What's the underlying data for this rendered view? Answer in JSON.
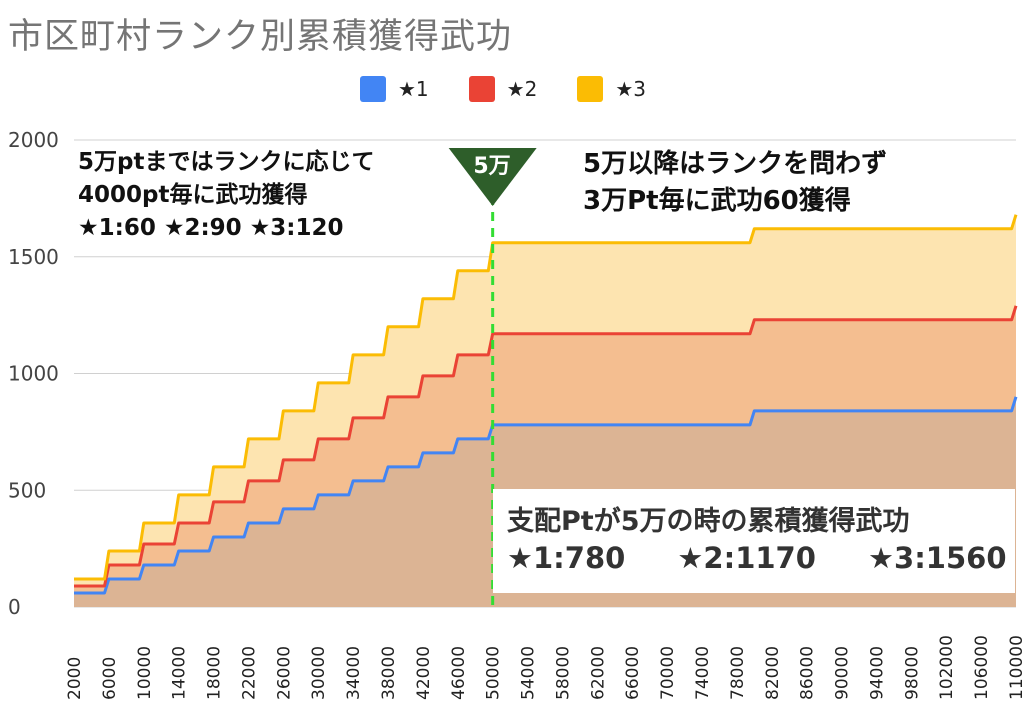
{
  "title": "市区町村ランク別累積獲得武功",
  "legend": [
    {
      "label": "★1",
      "color": "#4285f4"
    },
    {
      "label": "★2",
      "color": "#ea4335"
    },
    {
      "label": "★3",
      "color": "#fbbc04"
    }
  ],
  "annotations": {
    "left_line1": "5万ptまではランクに応じて",
    "left_line2": "4000pt毎に武功獲得",
    "left_line3": "★1:60 ★2:90 ★3:120",
    "right_line1": "5万以降はランクを問わず",
    "right_line2": "3万Pt毎に武功60獲得",
    "marker_label": "5万",
    "box_title": "支配Ptが5万の時の累積獲得武功",
    "box_v1": "★1:780",
    "box_v2": "★2:1170",
    "box_v3": "★3:1560"
  },
  "chart_data": {
    "type": "area",
    "title": "市区町村ランク別累積獲得武功",
    "x": [
      2000,
      4000,
      6000,
      8000,
      10000,
      12000,
      14000,
      16000,
      18000,
      20000,
      22000,
      24000,
      26000,
      28000,
      30000,
      32000,
      34000,
      36000,
      38000,
      40000,
      42000,
      44000,
      46000,
      48000,
      50000,
      52000,
      54000,
      56000,
      58000,
      60000,
      62000,
      64000,
      66000,
      68000,
      70000,
      72000,
      74000,
      76000,
      78000,
      80000,
      82000,
      84000,
      86000,
      88000,
      90000,
      92000,
      94000,
      96000,
      98000,
      100000,
      102000,
      104000,
      106000,
      108000,
      110000
    ],
    "x_tick_labels": [
      "2000",
      "6000",
      "10000",
      "14000",
      "18000",
      "22000",
      "26000",
      "30000",
      "34000",
      "38000",
      "42000",
      "46000",
      "50000",
      "54000",
      "58000",
      "62000",
      "66000",
      "70000",
      "74000",
      "78000",
      "82000",
      "86000",
      "90000",
      "94000",
      "98000",
      "102000",
      "106000",
      "110000"
    ],
    "series": [
      {
        "name": "★1",
        "color": "#4285f4",
        "values": [
          60,
          60,
          120,
          120,
          180,
          180,
          240,
          240,
          300,
          300,
          360,
          360,
          420,
          420,
          480,
          480,
          540,
          540,
          600,
          600,
          660,
          660,
          720,
          720,
          780,
          780,
          780,
          780,
          780,
          780,
          780,
          780,
          780,
          780,
          780,
          780,
          780,
          780,
          780,
          840,
          840,
          840,
          840,
          840,
          840,
          840,
          840,
          840,
          840,
          840,
          840,
          840,
          840,
          840,
          900
        ]
      },
      {
        "name": "★2",
        "color": "#ea4335",
        "values": [
          90,
          90,
          180,
          180,
          270,
          270,
          360,
          360,
          450,
          450,
          540,
          540,
          630,
          630,
          720,
          720,
          810,
          810,
          900,
          900,
          990,
          990,
          1080,
          1080,
          1170,
          1170,
          1170,
          1170,
          1170,
          1170,
          1170,
          1170,
          1170,
          1170,
          1170,
          1170,
          1170,
          1170,
          1170,
          1230,
          1230,
          1230,
          1230,
          1230,
          1230,
          1230,
          1230,
          1230,
          1230,
          1230,
          1230,
          1230,
          1230,
          1230,
          1290
        ]
      },
      {
        "name": "★3",
        "color": "#fbbc04",
        "values": [
          120,
          120,
          240,
          240,
          360,
          360,
          480,
          480,
          600,
          600,
          720,
          720,
          840,
          840,
          960,
          960,
          1080,
          1080,
          1200,
          1200,
          1320,
          1320,
          1440,
          1440,
          1560,
          1560,
          1560,
          1560,
          1560,
          1560,
          1560,
          1560,
          1560,
          1560,
          1560,
          1560,
          1560,
          1560,
          1560,
          1620,
          1620,
          1620,
          1620,
          1620,
          1620,
          1620,
          1620,
          1620,
          1620,
          1620,
          1620,
          1620,
          1620,
          1620,
          1680
        ]
      }
    ],
    "ylim": [
      0,
      2000
    ],
    "yticks": [
      0,
      500,
      1000,
      1500,
      2000
    ],
    "marker_x": 50000,
    "xlabel": "",
    "ylabel": ""
  }
}
